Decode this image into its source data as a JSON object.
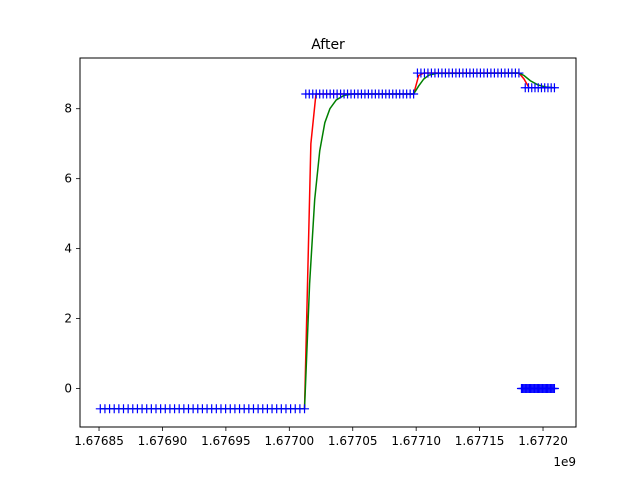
{
  "chart_data": {
    "type": "line",
    "title": "After",
    "xlabel": "",
    "ylabel": "",
    "x_offset_label": "1e9",
    "xlim": [
      1.676835,
      1.677226
    ],
    "ylim": [
      -1.1,
      9.45
    ],
    "x_ticks": [
      {
        "value": 1.67685,
        "label": "1.67685"
      },
      {
        "value": 1.6769,
        "label": "1.67690"
      },
      {
        "value": 1.67695,
        "label": "1.67695"
      },
      {
        "value": 1.677,
        "label": "1.67700"
      },
      {
        "value": 1.67705,
        "label": "1.67705"
      },
      {
        "value": 1.6771,
        "label": "1.67710"
      },
      {
        "value": 1.67715,
        "label": "1.67715"
      },
      {
        "value": 1.6772,
        "label": "1.67720"
      }
    ],
    "y_ticks": [
      {
        "value": 0,
        "label": "0"
      },
      {
        "value": 2,
        "label": "2"
      },
      {
        "value": 4,
        "label": "4"
      },
      {
        "value": 6,
        "label": "6"
      },
      {
        "value": 8,
        "label": "8"
      }
    ],
    "grid": false,
    "legend": "none",
    "series": [
      {
        "style": "markers",
        "marker": "+",
        "color": "#0000ff",
        "segments": [
          {
            "x_start": 1.676851,
            "x_end": 1.677012,
            "y": -0.58,
            "count": 45
          },
          {
            "x_start": 1.677013,
            "x_end": 1.677098,
            "y": 8.42,
            "count": 32
          },
          {
            "x_start": 1.677101,
            "x_end": 1.677181,
            "y": 9.02,
            "count": 30
          },
          {
            "x_start": 1.677186,
            "x_end": 1.677209,
            "y": 8.6,
            "count": 10
          },
          {
            "x_start": 1.677183,
            "x_end": 1.677209,
            "y": 0.0,
            "count": 30
          }
        ]
      },
      {
        "style": "line",
        "color": "#ff0000",
        "points": [
          [
            1.676851,
            -0.58
          ],
          [
            1.677012,
            -0.58
          ],
          [
            1.677017,
            7.0
          ],
          [
            1.677021,
            8.42
          ],
          [
            1.677098,
            8.42
          ],
          [
            1.677102,
            8.95
          ],
          [
            1.677106,
            9.02
          ],
          [
            1.677181,
            9.02
          ],
          [
            1.677185,
            8.85
          ],
          [
            1.677189,
            8.6
          ],
          [
            1.677209,
            8.6
          ]
        ]
      },
      {
        "style": "line",
        "color": "#008000",
        "points": [
          [
            1.676851,
            -0.58
          ],
          [
            1.677012,
            -0.58
          ],
          [
            1.677016,
            3.0
          ],
          [
            1.67702,
            5.4
          ],
          [
            1.677024,
            6.8
          ],
          [
            1.677028,
            7.6
          ],
          [
            1.677032,
            8.0
          ],
          [
            1.677037,
            8.25
          ],
          [
            1.677043,
            8.38
          ],
          [
            1.67705,
            8.42
          ],
          [
            1.677098,
            8.42
          ],
          [
            1.677102,
            8.65
          ],
          [
            1.677106,
            8.85
          ],
          [
            1.67711,
            8.96
          ],
          [
            1.677116,
            9.01
          ],
          [
            1.677181,
            9.02
          ],
          [
            1.677185,
            8.95
          ],
          [
            1.67719,
            8.8
          ],
          [
            1.677196,
            8.68
          ],
          [
            1.677202,
            8.62
          ],
          [
            1.677209,
            8.6
          ]
        ]
      }
    ]
  }
}
